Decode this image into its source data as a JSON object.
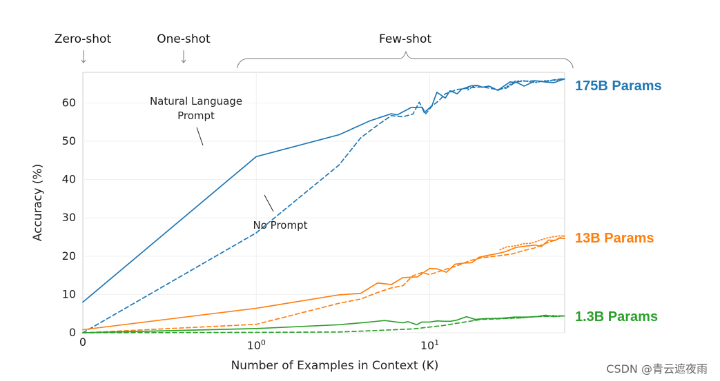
{
  "chart_data": {
    "type": "line",
    "title": "",
    "xlabel": "Number of Examples in Context  (K)",
    "ylabel": "Accuracy (%)",
    "xscale": "symlog",
    "xlim": [
      0,
      60
    ],
    "ylim": [
      0,
      68
    ],
    "x_ticks": [
      {
        "value": 0,
        "label": "0"
      },
      {
        "value": 1,
        "label": "10^0"
      },
      {
        "value": 10,
        "label": "10^1"
      }
    ],
    "y_ticks": [
      0,
      10,
      20,
      30,
      40,
      50,
      60
    ],
    "grid": true,
    "legend": "none",
    "annotations": {
      "zero_shot": "Zero-shot",
      "one_shot": "One-shot",
      "few_shot": "Few-shot",
      "natural_language_prompt_line1": "Natural Language",
      "natural_language_prompt_line2": "Prompt",
      "no_prompt": "No Prompt"
    },
    "series_labels": {
      "s175b": "175B Params",
      "s13b": "13B Params",
      "s1_3b": "1.3B Params"
    },
    "colors": {
      "s175b": "#1f77b4",
      "s13b": "#ff7f0e",
      "s1_3b": "#2ca02c"
    },
    "series": [
      {
        "key": "s175b",
        "variant": "solid",
        "x": [
          0,
          1,
          3,
          4.5,
          6,
          6.5,
          7.8,
          9,
          9.3,
          10.3,
          11,
          12.3,
          13.1,
          14.4,
          15.3,
          17.4,
          18.8,
          20.1,
          22,
          24.7,
          26.4,
          29,
          32,
          35,
          40.6,
          46,
          52,
          60
        ],
        "y": [
          8,
          46,
          51.7,
          55.3,
          57.2,
          56.9,
          58.8,
          58.9,
          57.5,
          59.3,
          62.8,
          61.3,
          63.2,
          62.4,
          63.6,
          64.5,
          64.6,
          64.1,
          64.4,
          63.3,
          64.2,
          65.5,
          65.3,
          64.4,
          65.8,
          65.5,
          65.3,
          66.3
        ]
      },
      {
        "key": "s175b",
        "variant": "dashed",
        "x": [
          0,
          1,
          3,
          4,
          5,
          6,
          7,
          8,
          8.7,
          9.5,
          10.3,
          11.3,
          12.3,
          14.4,
          17.4,
          20,
          24.6,
          27.7,
          31.4,
          35.1,
          40.4,
          46,
          53,
          60
        ],
        "y": [
          0,
          26.1,
          43.8,
          50.9,
          54.2,
          56.7,
          56.4,
          57.1,
          60.2,
          57.2,
          59.2,
          60.6,
          62.4,
          63.5,
          64.0,
          64.2,
          63.5,
          63.9,
          65.5,
          65.7,
          65.8,
          65.6,
          66.1,
          66.4
        ]
      },
      {
        "key": "s175b",
        "variant": "dotted",
        "x": [
          16.6,
          17.7,
          18.8,
          20.1,
          22,
          24.7,
          27.5,
          31,
          35,
          40.6,
          46,
          52,
          60
        ],
        "y": [
          63.4,
          64.3,
          64.5,
          64.1,
          64.4,
          63.3,
          64.1,
          65.7,
          65.8,
          65.3,
          65.8,
          65.9,
          66.2
        ]
      },
      {
        "key": "s13b",
        "variant": "solid",
        "x": [
          0,
          1,
          3,
          4,
          5,
          6,
          7,
          8.5,
          10,
          11,
          12.5,
          14,
          15.8,
          17.5,
          19.2,
          21,
          24.7,
          27.4,
          31.5,
          35.5,
          40.6,
          44,
          48.5,
          52.8,
          56,
          60
        ],
        "y": [
          0.8,
          6.4,
          9.9,
          10.3,
          13.0,
          12.6,
          14.4,
          14.6,
          16.8,
          16.7,
          15.8,
          17.9,
          18.2,
          18.3,
          19.7,
          20.1,
          20.7,
          21.2,
          22.3,
          22.6,
          22.9,
          22.5,
          24.2,
          24.1,
          24.7,
          24.6
        ]
      },
      {
        "key": "s13b",
        "variant": "dashed",
        "x": [
          0,
          1,
          3,
          4,
          5,
          6,
          7,
          8,
          9,
          10,
          11,
          12,
          14,
          17,
          20,
          25,
          30,
          35,
          40,
          45,
          50,
          55,
          60
        ],
        "y": [
          0,
          2.2,
          7.7,
          8.8,
          10.5,
          11.7,
          12.3,
          14.9,
          15.7,
          15.2,
          15.8,
          16.4,
          17.3,
          18.8,
          19.6,
          20.1,
          20.6,
          21.5,
          22.1,
          23.1,
          23.8,
          24.6,
          25.3
        ]
      },
      {
        "key": "s13b",
        "variant": "dotted",
        "x": [
          25.4,
          27.7,
          30,
          32,
          35,
          37.6,
          40.6,
          44,
          48,
          52,
          56,
          60
        ],
        "y": [
          21.7,
          22.4,
          22.6,
          22.8,
          23.3,
          23.3,
          23.7,
          24.3,
          24.8,
          25.1,
          25.3,
          25.3
        ]
      },
      {
        "key": "s1_3b",
        "variant": "solid",
        "x": [
          0,
          1,
          3,
          4.5,
          5.5,
          7,
          7.5,
          8.4,
          9,
          10,
          11.1,
          12.1,
          13.2,
          14.3,
          16.3,
          18.3,
          20.8,
          24.4,
          27.4,
          30.8,
          35.7,
          41.3,
          46.6,
          52,
          56,
          60
        ],
        "y": [
          0,
          1.1,
          2.1,
          2.8,
          3.2,
          2.6,
          2.9,
          2.1,
          2.8,
          2.8,
          3.1,
          3.0,
          3.0,
          3.3,
          4.2,
          3.5,
          3.7,
          3.7,
          3.9,
          4.1,
          4.1,
          4.2,
          4.6,
          4.2,
          4.4,
          4.4
        ]
      },
      {
        "key": "s1_3b",
        "variant": "dashed",
        "x": [
          0,
          1,
          3,
          5,
          7,
          8,
          10,
          12,
          14,
          17,
          20,
          24,
          29,
          34,
          40,
          46,
          52,
          56,
          60
        ],
        "y": [
          0,
          0.1,
          0.2,
          0.6,
          0.9,
          1.0,
          1.5,
          1.9,
          2.4,
          3.0,
          3.5,
          3.6,
          3.8,
          3.9,
          4.2,
          4.3,
          4.3,
          4.4,
          4.4
        ]
      },
      {
        "key": "s1_3b",
        "variant": "dotted",
        "x": [
          18,
          20,
          24,
          29,
          34,
          40,
          46,
          52,
          56,
          60
        ],
        "y": [
          3.3,
          3.6,
          3.8,
          3.8,
          3.9,
          4.2,
          4.3,
          4.5,
          4.3,
          4.4
        ]
      }
    ]
  },
  "watermark": "CSDN @青云遮夜雨"
}
